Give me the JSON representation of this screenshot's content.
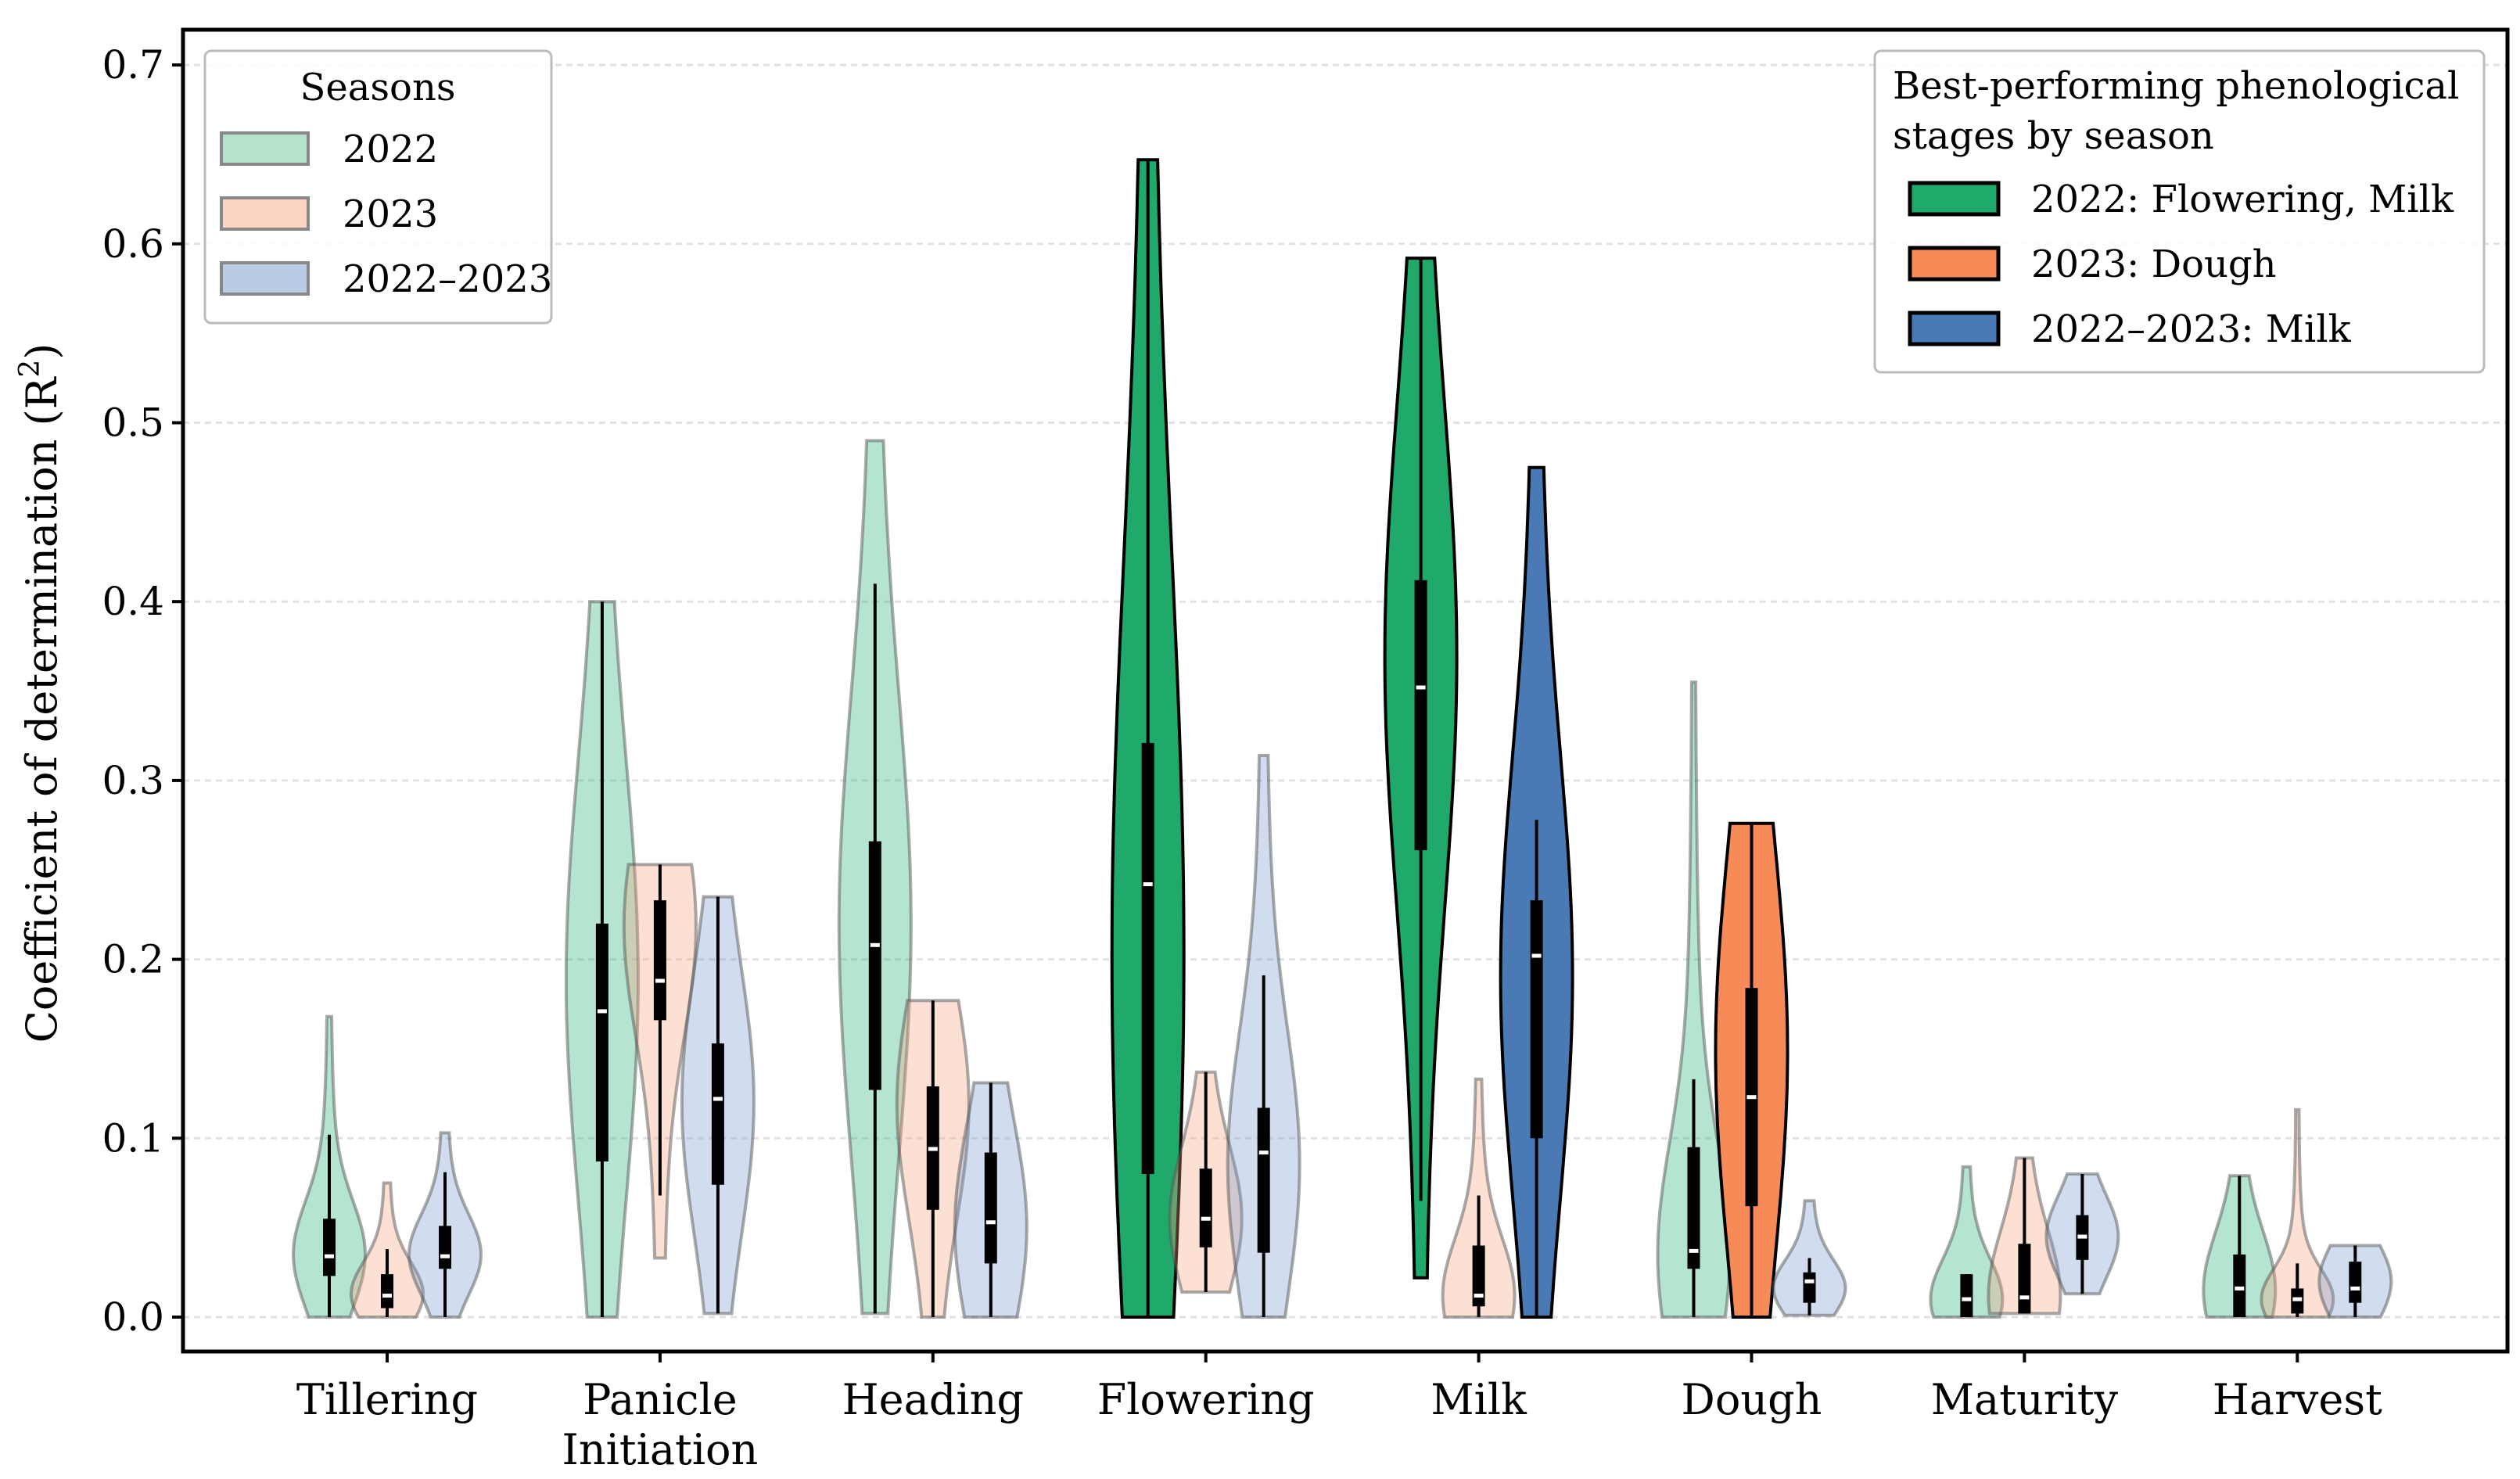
{
  "chart_data": {
    "type": "violin",
    "title": "",
    "xlabel": "",
    "ylabel": "Coefficient of determination (R²)",
    "ylabel_main": "Coefficient of determination (R",
    "ylabel_sup": "2",
    "ylabel_close": ")",
    "ylim": [
      -0.03,
      0.72
    ],
    "yticks": [
      "0.0",
      "0.1",
      "0.2",
      "0.3",
      "0.4",
      "0.5",
      "0.6",
      "0.7"
    ],
    "grid": true,
    "categories": [
      "Tillering",
      "Panicle Initiation",
      "Heading",
      "Flowering",
      "Milk",
      "Dough",
      "Maturity",
      "Harvest"
    ],
    "category_lines": [
      [
        "Tillering"
      ],
      [
        "Panicle",
        "Initiation"
      ],
      [
        "Heading"
      ],
      [
        "Flowering"
      ],
      [
        "Milk"
      ],
      [
        "Dough"
      ],
      [
        "Maturity"
      ],
      [
        "Harvest"
      ]
    ],
    "series": [
      {
        "name": "2022",
        "color": "#1aaf6c",
        "highlight_color": "#1fa96a"
      },
      {
        "name": "2023",
        "color": "#f7a07a",
        "highlight_color": "#f68b58"
      },
      {
        "name": "2022–2023",
        "color": "#6f95c9",
        "highlight_color": "#4a7ab5"
      }
    ],
    "violins": [
      [
        {
          "min": 0,
          "max": 0.168,
          "q1": 0.023,
          "median": 0.034,
          "q3": 0.055,
          "wlo": 0,
          "whi": 0.102,
          "peak": 0.035,
          "hl": false
        },
        {
          "min": 0,
          "max": 0.075,
          "q1": 0.005,
          "median": 0.012,
          "q3": 0.024,
          "wlo": 0,
          "whi": 0.038,
          "peak": 0.013,
          "hl": false
        },
        {
          "min": 0,
          "max": 0.103,
          "q1": 0.027,
          "median": 0.034,
          "q3": 0.051,
          "wlo": 0,
          "whi": 0.081,
          "peak": 0.035,
          "hl": false
        }
      ],
      [
        {
          "min": 0,
          "max": 0.4,
          "q1": 0.087,
          "median": 0.171,
          "q3": 0.22,
          "wlo": 0,
          "whi": 0.4,
          "peak": 0.19,
          "hl": false
        },
        {
          "min": 0.033,
          "max": 0.253,
          "q1": 0.166,
          "median": 0.188,
          "q3": 0.233,
          "wlo": 0.068,
          "whi": 0.253,
          "peak": 0.22,
          "hl": false
        },
        {
          "min": 0.002,
          "max": 0.235,
          "q1": 0.074,
          "median": 0.122,
          "q3": 0.153,
          "wlo": 0.002,
          "whi": 0.235,
          "peak": 0.12,
          "hl": false
        }
      ],
      [
        {
          "min": 0.002,
          "max": 0.49,
          "q1": 0.127,
          "median": 0.208,
          "q3": 0.266,
          "wlo": 0.002,
          "whi": 0.41,
          "peak": 0.22,
          "hl": false
        },
        {
          "min": 0,
          "max": 0.177,
          "q1": 0.06,
          "median": 0.094,
          "q3": 0.129,
          "wlo": 0,
          "whi": 0.177,
          "peak": 0.12,
          "hl": false
        },
        {
          "min": 0,
          "max": 0.131,
          "q1": 0.03,
          "median": 0.053,
          "q3": 0.092,
          "wlo": 0,
          "whi": 0.131,
          "peak": 0.05,
          "hl": false
        }
      ],
      [
        {
          "min": 0,
          "max": 0.647,
          "q1": 0.08,
          "median": 0.242,
          "q3": 0.321,
          "wlo": 0,
          "whi": 0.647,
          "peak": 0.2,
          "hl": true
        },
        {
          "min": 0.014,
          "max": 0.137,
          "q1": 0.039,
          "median": 0.055,
          "q3": 0.083,
          "wlo": 0.014,
          "whi": 0.137,
          "peak": 0.055,
          "hl": false
        },
        {
          "min": 0,
          "max": 0.314,
          "q1": 0.036,
          "median": 0.092,
          "q3": 0.117,
          "wlo": 0,
          "whi": 0.191,
          "peak": 0.085,
          "hl": false
        }
      ],
      [
        {
          "min": 0.022,
          "max": 0.592,
          "q1": 0.261,
          "median": 0.352,
          "q3": 0.412,
          "wlo": 0.065,
          "whi": 0.592,
          "peak": 0.37,
          "hl": true
        },
        {
          "min": 0,
          "max": 0.133,
          "q1": 0.006,
          "median": 0.012,
          "q3": 0.04,
          "wlo": 0,
          "whi": 0.068,
          "peak": 0.012,
          "hl": false
        },
        {
          "min": 0,
          "max": 0.475,
          "q1": 0.1,
          "median": 0.202,
          "q3": 0.233,
          "wlo": 0,
          "whi": 0.278,
          "peak": 0.19,
          "hl": true
        }
      ],
      [
        {
          "min": 0,
          "max": 0.355,
          "q1": 0.027,
          "median": 0.037,
          "q3": 0.095,
          "wlo": 0,
          "whi": 0.133,
          "peak": 0.035,
          "hl": false
        },
        {
          "min": 0,
          "max": 0.276,
          "q1": 0.062,
          "median": 0.123,
          "q3": 0.184,
          "wlo": 0,
          "whi": 0.276,
          "peak": 0.15,
          "hl": true
        },
        {
          "min": 0.001,
          "max": 0.065,
          "q1": 0.008,
          "median": 0.02,
          "q3": 0.025,
          "wlo": 0.001,
          "whi": 0.033,
          "peak": 0.016,
          "hl": false
        }
      ],
      [
        {
          "min": 0,
          "max": 0.084,
          "q1": 0.0,
          "median": 0.01,
          "q3": 0.024,
          "wlo": 0,
          "whi": 0.024,
          "peak": 0.01,
          "hl": false
        },
        {
          "min": 0.002,
          "max": 0.089,
          "q1": 0.002,
          "median": 0.011,
          "q3": 0.041,
          "wlo": 0.002,
          "whi": 0.089,
          "peak": 0.012,
          "hl": false
        },
        {
          "min": 0.013,
          "max": 0.08,
          "q1": 0.032,
          "median": 0.045,
          "q3": 0.057,
          "wlo": 0.013,
          "whi": 0.08,
          "peak": 0.045,
          "hl": false
        }
      ],
      [
        {
          "min": 0,
          "max": 0.079,
          "q1": 0.0,
          "median": 0.016,
          "q3": 0.035,
          "wlo": 0,
          "whi": 0.079,
          "peak": 0.015,
          "hl": false
        },
        {
          "min": 0,
          "max": 0.116,
          "q1": 0.002,
          "median": 0.01,
          "q3": 0.016,
          "wlo": 0,
          "whi": 0.03,
          "peak": 0.01,
          "hl": false
        },
        {
          "min": 0,
          "max": 0.04,
          "q1": 0.008,
          "median": 0.016,
          "q3": 0.031,
          "wlo": 0,
          "whi": 0.04,
          "peak": 0.02,
          "hl": false
        }
      ]
    ],
    "legends": {
      "seasons": {
        "title": "Seasons",
        "placement": "top-left",
        "entries": [
          {
            "label": "2022",
            "color": "#b5e2cb"
          },
          {
            "label": "2023",
            "color": "#fcd4c2"
          },
          {
            "label": "2022–2023",
            "color": "#b9cce5"
          }
        ]
      },
      "best": {
        "title_line1": "Best-performing phenological",
        "title_line2": "stages by season",
        "placement": "top-right",
        "entries": [
          {
            "label": "2022: Flowering, Milk",
            "color": "#1fa96a"
          },
          {
            "label": "2023: Dough",
            "color": "#f68b58"
          },
          {
            "label": "2022–2023: Milk",
            "color": "#4a7ab5"
          }
        ]
      }
    }
  }
}
